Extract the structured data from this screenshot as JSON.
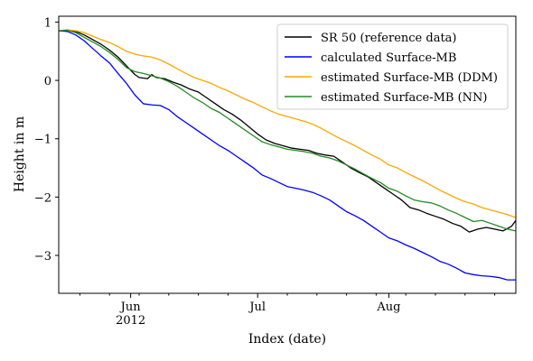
{
  "chart_data": {
    "type": "line",
    "xlabel": "Index (date)",
    "ylabel": "Height in m",
    "x_range": [
      "2012-05-15",
      "2012-08-31"
    ],
    "ylim": [
      -3.65,
      1.1
    ],
    "y_ticks": [
      1,
      0,
      -1,
      -2,
      -3
    ],
    "y_tick_labels": [
      "1",
      "0",
      "−1",
      "−2",
      "−3"
    ],
    "x_ticks": [
      {
        "date": "2012-06-01",
        "label": "Jun",
        "sublabel": "2012"
      },
      {
        "date": "2012-07-01",
        "label": "Jul",
        "sublabel": ""
      },
      {
        "date": "2012-08-01",
        "label": "Aug",
        "sublabel": ""
      }
    ],
    "x_minor_ticks": [
      "2012-05-20",
      "2012-05-27",
      "2012-06-03",
      "2012-06-10",
      "2012-06-17",
      "2012-06-24",
      "2012-07-08",
      "2012-07-15",
      "2012-07-22",
      "2012-07-29",
      "2012-08-05",
      "2012-08-12",
      "2012-08-19",
      "2012-08-26"
    ],
    "grid": false,
    "legend_position": "top-right",
    "series": [
      {
        "name": "SR 50 (reference data)",
        "color": "#000000",
        "points": [
          [
            "2012-05-15",
            0.85
          ],
          [
            "2012-05-17",
            0.86
          ],
          [
            "2012-05-19",
            0.84
          ],
          [
            "2012-05-21",
            0.78
          ],
          [
            "2012-05-23",
            0.7
          ],
          [
            "2012-05-25",
            0.62
          ],
          [
            "2012-05-27",
            0.52
          ],
          [
            "2012-05-29",
            0.4
          ],
          [
            "2012-05-31",
            0.25
          ],
          [
            "2012-06-02",
            0.1
          ],
          [
            "2012-06-03",
            0.05
          ],
          [
            "2012-06-05",
            0.03
          ],
          [
            "2012-06-06",
            0.1
          ],
          [
            "2012-06-07",
            0.05
          ],
          [
            "2012-06-09",
            0.03
          ],
          [
            "2012-06-11",
            -0.03
          ],
          [
            "2012-06-13",
            -0.08
          ],
          [
            "2012-06-15",
            -0.15
          ],
          [
            "2012-06-17",
            -0.2
          ],
          [
            "2012-06-19",
            -0.3
          ],
          [
            "2012-06-21",
            -0.4
          ],
          [
            "2012-06-23",
            -0.5
          ],
          [
            "2012-06-25",
            -0.58
          ],
          [
            "2012-06-27",
            -0.68
          ],
          [
            "2012-06-29",
            -0.8
          ],
          [
            "2012-07-01",
            -0.92
          ],
          [
            "2012-07-03",
            -1.02
          ],
          [
            "2012-07-05",
            -1.08
          ],
          [
            "2012-07-07",
            -1.12
          ],
          [
            "2012-07-09",
            -1.16
          ],
          [
            "2012-07-11",
            -1.18
          ],
          [
            "2012-07-13",
            -1.2
          ],
          [
            "2012-07-15",
            -1.25
          ],
          [
            "2012-07-17",
            -1.28
          ],
          [
            "2012-07-19",
            -1.3
          ],
          [
            "2012-07-21",
            -1.4
          ],
          [
            "2012-07-23",
            -1.5
          ],
          [
            "2012-07-25",
            -1.58
          ],
          [
            "2012-07-27",
            -1.65
          ],
          [
            "2012-07-29",
            -1.75
          ],
          [
            "2012-07-31",
            -1.85
          ],
          [
            "2012-08-02",
            -1.95
          ],
          [
            "2012-08-04",
            -2.05
          ],
          [
            "2012-08-06",
            -2.18
          ],
          [
            "2012-08-08",
            -2.22
          ],
          [
            "2012-08-10",
            -2.28
          ],
          [
            "2012-08-12",
            -2.33
          ],
          [
            "2012-08-14",
            -2.38
          ],
          [
            "2012-08-16",
            -2.45
          ],
          [
            "2012-08-18",
            -2.5
          ],
          [
            "2012-08-20",
            -2.6
          ],
          [
            "2012-08-22",
            -2.55
          ],
          [
            "2012-08-24",
            -2.52
          ],
          [
            "2012-08-26",
            -2.55
          ],
          [
            "2012-08-28",
            -2.58
          ],
          [
            "2012-08-30",
            -2.5
          ],
          [
            "2012-08-31",
            -2.4
          ]
        ]
      },
      {
        "name": "calculated Surface-MB",
        "color": "#0000ff",
        "points": [
          [
            "2012-05-15",
            0.85
          ],
          [
            "2012-05-17",
            0.84
          ],
          [
            "2012-05-19",
            0.78
          ],
          [
            "2012-05-21",
            0.68
          ],
          [
            "2012-05-23",
            0.55
          ],
          [
            "2012-05-25",
            0.42
          ],
          [
            "2012-05-27",
            0.3
          ],
          [
            "2012-05-29",
            0.12
          ],
          [
            "2012-05-31",
            -0.05
          ],
          [
            "2012-06-02",
            -0.25
          ],
          [
            "2012-06-04",
            -0.4
          ],
          [
            "2012-06-06",
            -0.42
          ],
          [
            "2012-06-08",
            -0.43
          ],
          [
            "2012-06-10",
            -0.5
          ],
          [
            "2012-06-12",
            -0.62
          ],
          [
            "2012-06-14",
            -0.72
          ],
          [
            "2012-06-16",
            -0.82
          ],
          [
            "2012-06-18",
            -0.92
          ],
          [
            "2012-06-20",
            -1.02
          ],
          [
            "2012-06-22",
            -1.12
          ],
          [
            "2012-06-24",
            -1.2
          ],
          [
            "2012-06-26",
            -1.3
          ],
          [
            "2012-06-28",
            -1.4
          ],
          [
            "2012-06-30",
            -1.5
          ],
          [
            "2012-07-02",
            -1.62
          ],
          [
            "2012-07-04",
            -1.68
          ],
          [
            "2012-07-06",
            -1.75
          ],
          [
            "2012-07-08",
            -1.82
          ],
          [
            "2012-07-10",
            -1.85
          ],
          [
            "2012-07-12",
            -1.88
          ],
          [
            "2012-07-14",
            -1.92
          ],
          [
            "2012-07-16",
            -1.98
          ],
          [
            "2012-07-18",
            -2.05
          ],
          [
            "2012-07-20",
            -2.15
          ],
          [
            "2012-07-22",
            -2.25
          ],
          [
            "2012-07-24",
            -2.32
          ],
          [
            "2012-07-26",
            -2.4
          ],
          [
            "2012-07-28",
            -2.5
          ],
          [
            "2012-07-30",
            -2.6
          ],
          [
            "2012-08-01",
            -2.7
          ],
          [
            "2012-08-03",
            -2.75
          ],
          [
            "2012-08-05",
            -2.82
          ],
          [
            "2012-08-07",
            -2.88
          ],
          [
            "2012-08-09",
            -2.95
          ],
          [
            "2012-08-11",
            -3.02
          ],
          [
            "2012-08-13",
            -3.1
          ],
          [
            "2012-08-15",
            -3.15
          ],
          [
            "2012-08-17",
            -3.22
          ],
          [
            "2012-08-19",
            -3.3
          ],
          [
            "2012-08-21",
            -3.33
          ],
          [
            "2012-08-23",
            -3.35
          ],
          [
            "2012-08-25",
            -3.36
          ],
          [
            "2012-08-27",
            -3.38
          ],
          [
            "2012-08-29",
            -3.42
          ],
          [
            "2012-08-31",
            -3.42
          ]
        ]
      },
      {
        "name": "estimated Surface-MB (DDM)",
        "color": "#ffa500",
        "points": [
          [
            "2012-05-15",
            0.85
          ],
          [
            "2012-05-17",
            0.87
          ],
          [
            "2012-05-19",
            0.85
          ],
          [
            "2012-05-21",
            0.82
          ],
          [
            "2012-05-23",
            0.76
          ],
          [
            "2012-05-25",
            0.7
          ],
          [
            "2012-05-27",
            0.65
          ],
          [
            "2012-05-29",
            0.58
          ],
          [
            "2012-05-31",
            0.5
          ],
          [
            "2012-06-02",
            0.45
          ],
          [
            "2012-06-04",
            0.42
          ],
          [
            "2012-06-06",
            0.4
          ],
          [
            "2012-06-08",
            0.35
          ],
          [
            "2012-06-10",
            0.28
          ],
          [
            "2012-06-12",
            0.2
          ],
          [
            "2012-06-14",
            0.12
          ],
          [
            "2012-06-16",
            0.05
          ],
          [
            "2012-06-18",
            0.0
          ],
          [
            "2012-06-20",
            -0.05
          ],
          [
            "2012-06-22",
            -0.12
          ],
          [
            "2012-06-24",
            -0.18
          ],
          [
            "2012-06-26",
            -0.25
          ],
          [
            "2012-06-28",
            -0.32
          ],
          [
            "2012-06-30",
            -0.38
          ],
          [
            "2012-07-02",
            -0.45
          ],
          [
            "2012-07-04",
            -0.52
          ],
          [
            "2012-07-06",
            -0.58
          ],
          [
            "2012-07-08",
            -0.62
          ],
          [
            "2012-07-10",
            -0.66
          ],
          [
            "2012-07-12",
            -0.7
          ],
          [
            "2012-07-14",
            -0.75
          ],
          [
            "2012-07-16",
            -0.82
          ],
          [
            "2012-07-18",
            -0.9
          ],
          [
            "2012-07-20",
            -0.98
          ],
          [
            "2012-07-22",
            -1.05
          ],
          [
            "2012-07-24",
            -1.12
          ],
          [
            "2012-07-26",
            -1.2
          ],
          [
            "2012-07-28",
            -1.28
          ],
          [
            "2012-07-30",
            -1.35
          ],
          [
            "2012-08-01",
            -1.45
          ],
          [
            "2012-08-03",
            -1.5
          ],
          [
            "2012-08-05",
            -1.58
          ],
          [
            "2012-08-07",
            -1.65
          ],
          [
            "2012-08-09",
            -1.72
          ],
          [
            "2012-08-11",
            -1.8
          ],
          [
            "2012-08-13",
            -1.88
          ],
          [
            "2012-08-15",
            -1.95
          ],
          [
            "2012-08-17",
            -2.02
          ],
          [
            "2012-08-19",
            -2.08
          ],
          [
            "2012-08-21",
            -2.12
          ],
          [
            "2012-08-23",
            -2.18
          ],
          [
            "2012-08-25",
            -2.22
          ],
          [
            "2012-08-27",
            -2.26
          ],
          [
            "2012-08-29",
            -2.3
          ],
          [
            "2012-08-31",
            -2.35
          ]
        ]
      },
      {
        "name": "estimated Surface-MB (NN)",
        "color": "#228b22",
        "points": [
          [
            "2012-05-15",
            0.85
          ],
          [
            "2012-05-17",
            0.86
          ],
          [
            "2012-05-19",
            0.82
          ],
          [
            "2012-05-21",
            0.74
          ],
          [
            "2012-05-23",
            0.66
          ],
          [
            "2012-05-25",
            0.58
          ],
          [
            "2012-05-27",
            0.48
          ],
          [
            "2012-05-29",
            0.36
          ],
          [
            "2012-05-31",
            0.22
          ],
          [
            "2012-06-02",
            0.15
          ],
          [
            "2012-06-04",
            0.12
          ],
          [
            "2012-06-06",
            0.08
          ],
          [
            "2012-06-08",
            0.04
          ],
          [
            "2012-06-10",
            -0.02
          ],
          [
            "2012-06-12",
            -0.1
          ],
          [
            "2012-06-14",
            -0.2
          ],
          [
            "2012-06-16",
            -0.3
          ],
          [
            "2012-06-18",
            -0.38
          ],
          [
            "2012-06-20",
            -0.48
          ],
          [
            "2012-06-22",
            -0.55
          ],
          [
            "2012-06-24",
            -0.65
          ],
          [
            "2012-06-26",
            -0.75
          ],
          [
            "2012-06-28",
            -0.85
          ],
          [
            "2012-06-30",
            -0.95
          ],
          [
            "2012-07-02",
            -1.05
          ],
          [
            "2012-07-04",
            -1.1
          ],
          [
            "2012-07-06",
            -1.14
          ],
          [
            "2012-07-08",
            -1.18
          ],
          [
            "2012-07-10",
            -1.2
          ],
          [
            "2012-07-12",
            -1.22
          ],
          [
            "2012-07-14",
            -1.25
          ],
          [
            "2012-07-16",
            -1.3
          ],
          [
            "2012-07-18",
            -1.33
          ],
          [
            "2012-07-20",
            -1.38
          ],
          [
            "2012-07-22",
            -1.45
          ],
          [
            "2012-07-24",
            -1.52
          ],
          [
            "2012-07-26",
            -1.6
          ],
          [
            "2012-07-28",
            -1.68
          ],
          [
            "2012-07-30",
            -1.75
          ],
          [
            "2012-08-01",
            -1.85
          ],
          [
            "2012-08-03",
            -1.9
          ],
          [
            "2012-08-05",
            -1.98
          ],
          [
            "2012-08-07",
            -2.05
          ],
          [
            "2012-08-09",
            -2.08
          ],
          [
            "2012-08-11",
            -2.1
          ],
          [
            "2012-08-13",
            -2.15
          ],
          [
            "2012-08-15",
            -2.22
          ],
          [
            "2012-08-17",
            -2.28
          ],
          [
            "2012-08-19",
            -2.35
          ],
          [
            "2012-08-21",
            -2.42
          ],
          [
            "2012-08-23",
            -2.4
          ],
          [
            "2012-08-25",
            -2.45
          ],
          [
            "2012-08-27",
            -2.5
          ],
          [
            "2012-08-29",
            -2.55
          ],
          [
            "2012-08-31",
            -2.58
          ]
        ]
      }
    ]
  }
}
